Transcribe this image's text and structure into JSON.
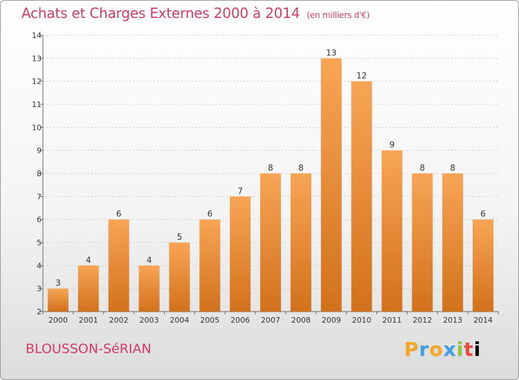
{
  "header": {
    "title": "Achats et Charges Externes 2000 à 2014",
    "subtitle": "(en milliers d'€)"
  },
  "footer": {
    "commune": "BLOUSSON-SéRIAN",
    "brand_letters": [
      "P",
      "r",
      "o",
      "x",
      "i",
      "t",
      "i"
    ]
  },
  "colors": {
    "bar_top": "#f7a555",
    "bar_bottom": "#d2711c",
    "title": "#d03c67"
  },
  "chart_data": {
    "type": "bar",
    "title": "Achats et Charges Externes 2000 à 2014",
    "subtitle": "(en milliers d'€)",
    "categories": [
      "2000",
      "2001",
      "2002",
      "2003",
      "2004",
      "2005",
      "2006",
      "2007",
      "2008",
      "2009",
      "2010",
      "2011",
      "2012",
      "2013",
      "2014"
    ],
    "values": [
      3,
      4,
      6,
      4,
      5,
      6,
      7,
      8,
      8,
      13,
      12,
      9,
      8,
      8,
      6
    ],
    "ylim": [
      2,
      14
    ],
    "yticks": [
      2,
      3,
      4,
      5,
      6,
      7,
      8,
      9,
      10,
      11,
      12,
      13,
      14
    ],
    "grid": true,
    "legend": false
  }
}
